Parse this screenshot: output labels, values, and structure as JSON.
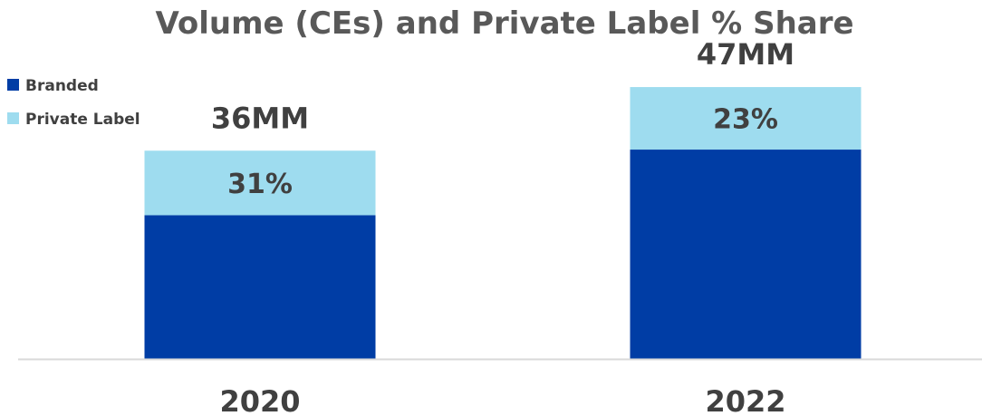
{
  "chart_data": {
    "type": "bar",
    "stacked": true,
    "title": "Volume (CEs) and Private Label % Share",
    "categories": [
      "2020",
      "2022"
    ],
    "totals_mm": [
      36,
      47
    ],
    "total_labels": [
      "36MM",
      "47MM"
    ],
    "series": [
      {
        "name": "Branded",
        "color": "#003DA5",
        "values": [
          24.84,
          36.19
        ]
      },
      {
        "name": "Private Label",
        "color": "#9EDCEF",
        "values": [
          11.16,
          10.81
        ],
        "labels": [
          "31%",
          "23%"
        ]
      }
    ],
    "ylim": [
      0,
      55
    ],
    "grid": false,
    "legend": "top-left",
    "axis_color": "#D9D9D9"
  }
}
